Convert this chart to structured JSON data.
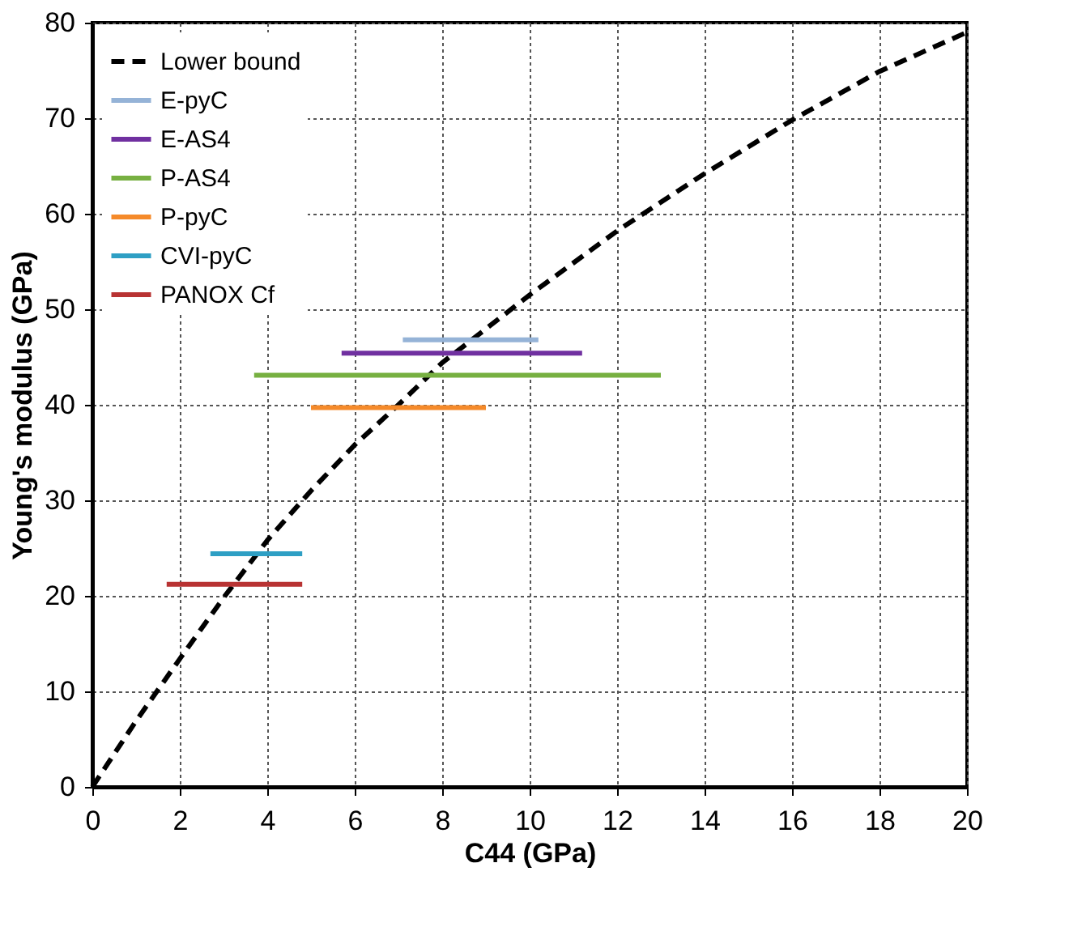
{
  "chart_data": {
    "type": "line",
    "xlabel": "C44 (GPa)",
    "ylabel": "Young's modulus (GPa)",
    "xlim": [
      0,
      20
    ],
    "xticks": [
      0,
      2,
      4,
      6,
      8,
      10,
      12,
      14,
      16,
      18,
      20
    ],
    "ylim": [
      0,
      80
    ],
    "yticks": [
      0,
      10,
      20,
      30,
      40,
      50,
      60,
      70,
      80
    ],
    "grid": true,
    "legend": "top left",
    "marker": "none",
    "series": [
      {
        "name": "Lower bound",
        "color": "#000000",
        "line_style": "dashed",
        "x": [
          0,
          1,
          2,
          3,
          4,
          5,
          6,
          7,
          8,
          10,
          12,
          14,
          16,
          18,
          20
        ],
        "values": [
          0,
          6.9,
          13.4,
          19.8,
          25.8,
          31,
          35.8,
          40,
          44.4,
          51.5,
          58.2,
          64.2,
          69.8,
          74.9,
          79
        ]
      },
      {
        "name": "E-pyC",
        "color": "#95b3d7",
        "line_style": "solid",
        "x": [
          7.1,
          10.2
        ],
        "values": [
          46.8,
          46.8
        ]
      },
      {
        "name": "E-AS4",
        "color": "#7030a0",
        "line_style": "solid",
        "x": [
          5.7,
          11.2
        ],
        "values": [
          45.4,
          45.4
        ]
      },
      {
        "name": "P-AS4",
        "color": "#77b041",
        "line_style": "solid",
        "x": [
          3.7,
          13.0
        ],
        "values": [
          43.1,
          43.1
        ]
      },
      {
        "name": "P-pyC",
        "color": "#f58a2a",
        "line_style": "solid",
        "x": [
          5.0,
          9.0
        ],
        "values": [
          39.7,
          39.7
        ]
      },
      {
        "name": "CVI-pyC",
        "color": "#2e9fc4",
        "line_style": "solid",
        "x": [
          2.7,
          4.8
        ],
        "values": [
          24.4,
          24.4
        ]
      },
      {
        "name": "PANOX Cf",
        "color": "#b83333",
        "line_style": "solid",
        "x": [
          1.7,
          4.8
        ],
        "values": [
          21.2,
          21.2
        ]
      }
    ]
  }
}
